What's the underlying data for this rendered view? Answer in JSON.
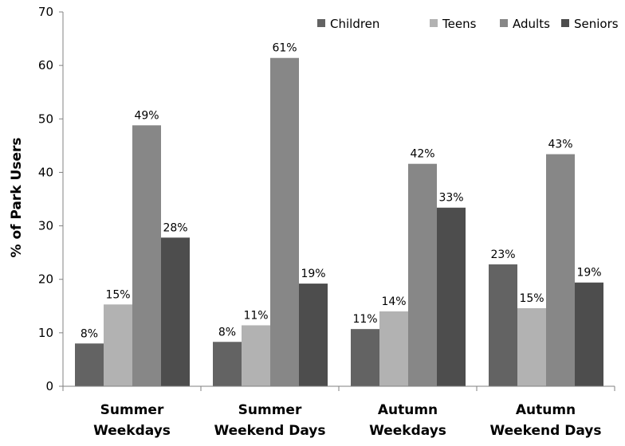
{
  "chart_data": {
    "type": "bar",
    "ylabel": "% of Park Users",
    "ylim": [
      0,
      70
    ],
    "yticks": [
      0,
      10,
      20,
      30,
      40,
      50,
      60,
      70
    ],
    "grid": false,
    "legend_position": "top-right",
    "categories": [
      [
        "Summer",
        "Weekdays"
      ],
      [
        "Summer",
        "Weekend Days"
      ],
      [
        "Autumn",
        "Weekdays"
      ],
      [
        "Autumn",
        "Weekend Days"
      ]
    ],
    "series": [
      {
        "name": "Children",
        "color": "#636363",
        "values": [
          8,
          8.3,
          10.7,
          22.8
        ],
        "labels": [
          "8%",
          "8%",
          "11%",
          "23%"
        ]
      },
      {
        "name": "Teens",
        "color": "#b2b2b2",
        "values": [
          15.3,
          11.4,
          14,
          14.6
        ],
        "labels": [
          "15%",
          "11%",
          "14%",
          "15%"
        ]
      },
      {
        "name": "Adults",
        "color": "#878787",
        "values": [
          48.8,
          61.4,
          41.6,
          43.4
        ],
        "labels": [
          "49%",
          "61%",
          "42%",
          "43%"
        ]
      },
      {
        "name": "Seniors",
        "color": "#4d4d4d",
        "values": [
          27.8,
          19.2,
          33.4,
          19.4
        ],
        "labels": [
          "28%",
          "19%",
          "33%",
          "19%"
        ]
      }
    ]
  }
}
